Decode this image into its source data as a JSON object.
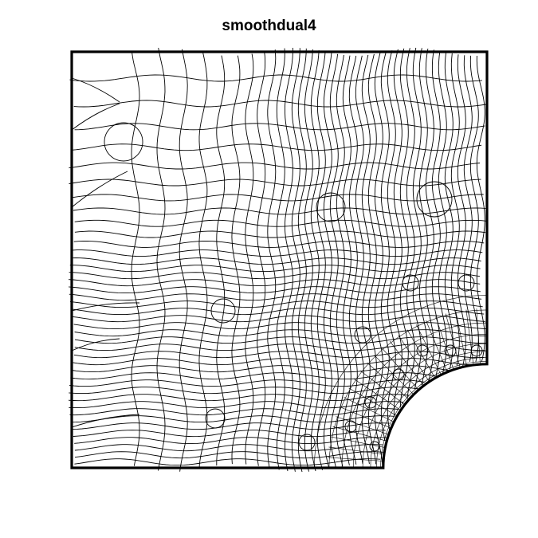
{
  "figure": {
    "title": "smoothdual4"
  },
  "colors": {
    "background": "#ffffff",
    "mesh_line": "#000000",
    "boundary": "#000000"
  },
  "domain": {
    "shape": "square-with-quarter-circle-hole",
    "x_range": [
      0,
      1
    ],
    "y_range": [
      0,
      1
    ],
    "hole_center": [
      1,
      0
    ],
    "hole_radius": 0.25
  }
}
